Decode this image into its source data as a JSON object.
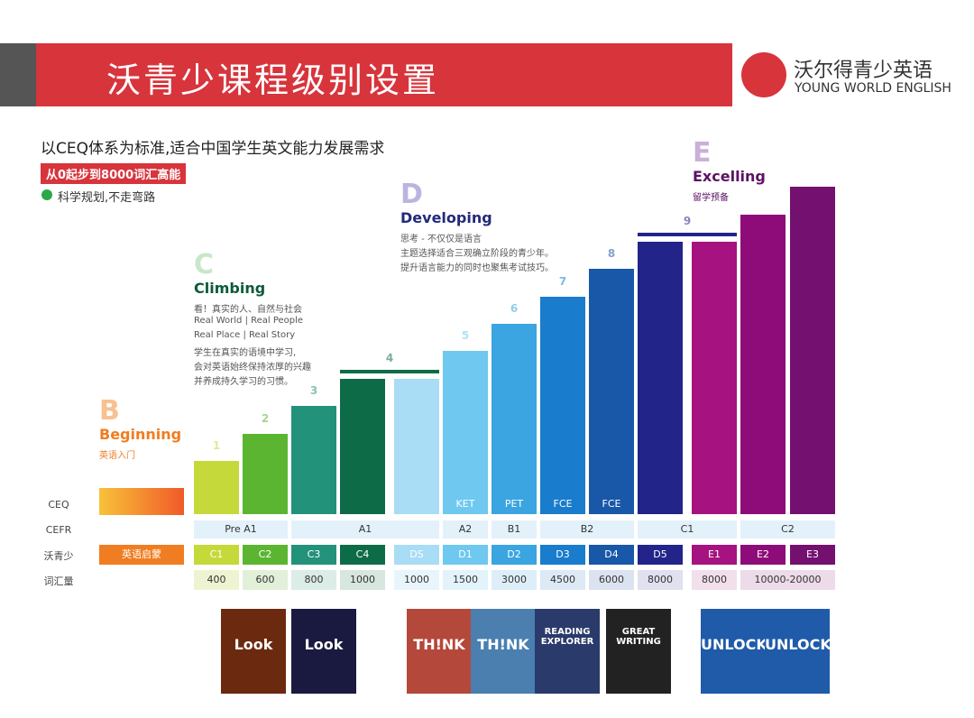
{
  "header": {
    "title": "沃青少课程级别设置",
    "brand": "沃尔得青少英语",
    "brand_en": "YOUNG WORLD ENGLISH"
  },
  "intro": {
    "headline": "以CEQ体系为标准,适合中国学生英文能力发展需求",
    "badge": "从0起步到8000词汇高能",
    "note": "科学规划,不走弯路"
  },
  "stages": [
    {
      "letter": "B",
      "name": "Beginning",
      "lines": [
        "英语入门"
      ]
    },
    {
      "letter": "C",
      "name": "Climbing",
      "lines": [
        "看！真实的人、自然与社会",
        "Real World | Real People",
        "Real Place | Real Story",
        "学生在真实的语境中学习,",
        "会对英语始终保持浓厚的兴趣",
        "并养成持久学习的习惯。"
      ]
    },
    {
      "letter": "D",
      "name": "Developing",
      "lines": [
        "思考 - 不仅仅是语言",
        "主题选择适合三观确立阶段的青少年。",
        "提升语言能力的同时也聚焦考试技巧。"
      ]
    },
    {
      "letter": "E",
      "name": "Excelling",
      "lines": [
        "留学预备"
      ]
    }
  ],
  "levels": [
    "1",
    "2",
    "3",
    "4",
    "5",
    "6",
    "7",
    "8",
    "9"
  ],
  "columns": [
    {
      "code": "C1",
      "color": "#c5d93a"
    },
    {
      "code": "C2",
      "color": "#5bb531"
    },
    {
      "code": "C3",
      "color": "#23927a"
    },
    {
      "code": "C4",
      "color": "#0e6b47"
    },
    {
      "code": "DS",
      "color": "#a9dcf5"
    },
    {
      "code": "D1",
      "color": "#6ec8ef",
      "exam": "KET"
    },
    {
      "code": "D2",
      "color": "#3aa5e0",
      "exam": "PET"
    },
    {
      "code": "D3",
      "color": "#1a7ccc",
      "exam": "FCE"
    },
    {
      "code": "D4",
      "color": "#1957a8",
      "exam": "FCE"
    },
    {
      "code": "D5",
      "color": "#22248a"
    },
    {
      "code": "E1",
      "color": "#a6127f"
    },
    {
      "code": "E2",
      "color": "#8e0c79"
    },
    {
      "code": "E3",
      "color": "#741070"
    }
  ],
  "row_labels": [
    "CEQ",
    "CEFR",
    "沃青少",
    "词汇量"
  ],
  "starter": "英语启蒙",
  "cefr": [
    "Pre A1",
    "A1",
    "A2",
    "B1",
    "B2",
    "C1",
    "C2"
  ],
  "vocabulary": [
    "400",
    "600",
    "800",
    "1000",
    "1000",
    "1500",
    "3000",
    "4500",
    "6000",
    "8000",
    "8000",
    "10000-20000"
  ],
  "books": [
    "Look",
    "Look",
    "TH!NK",
    "TH!NK",
    "READING EXPLORER",
    "GREAT WRITING",
    "UNLOCK",
    "UNLOCK"
  ]
}
